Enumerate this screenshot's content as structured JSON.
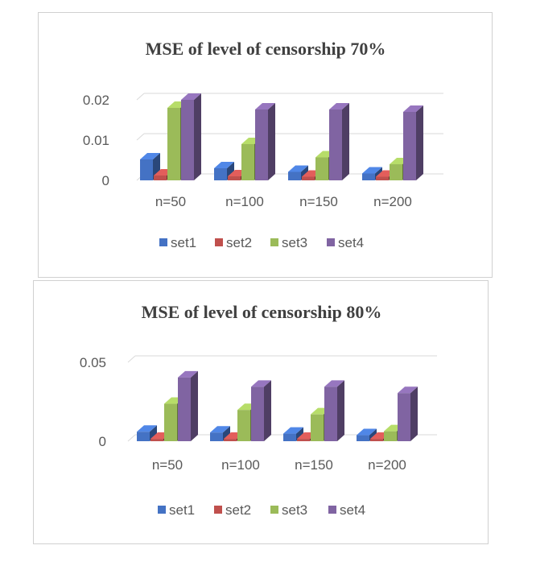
{
  "chart_data": [
    {
      "type": "bar",
      "title": "MSE of level of censorship 70%",
      "categories": [
        "n=50",
        "n=100",
        "n=150",
        "n=200"
      ],
      "series": [
        {
          "name": "set1",
          "values": [
            0.0052,
            0.003,
            0.0021,
            0.0017
          ]
        },
        {
          "name": "set2",
          "values": [
            0.0012,
            0.001,
            0.0009,
            0.0009
          ]
        },
        {
          "name": "set3",
          "values": [
            0.018,
            0.009,
            0.0057,
            0.004
          ]
        },
        {
          "name": "set4",
          "values": [
            0.02,
            0.0176,
            0.0176,
            0.017
          ]
        }
      ],
      "y_ticks": [
        "0",
        "0.01",
        "0.02"
      ],
      "ylim": [
        0,
        0.02
      ],
      "grid": true,
      "legend": "bottom"
    },
    {
      "type": "bar",
      "title": "MSE of level of censorship 80%",
      "categories": [
        "n=50",
        "n=100",
        "n=150",
        "n=200"
      ],
      "series": [
        {
          "name": "set1",
          "values": [
            0.006,
            0.0055,
            0.0048,
            0.0038
          ]
        },
        {
          "name": "set2",
          "values": [
            0.0015,
            0.0015,
            0.0015,
            0.0015
          ]
        },
        {
          "name": "set3",
          "values": [
            0.0237,
            0.0198,
            0.017,
            0.0063
          ]
        },
        {
          "name": "set4",
          "values": [
            0.0404,
            0.0345,
            0.0345,
            0.0305
          ]
        }
      ],
      "y_ticks": [
        "0",
        "0.05"
      ],
      "ylim": [
        0,
        0.05
      ],
      "grid": true,
      "legend": "bottom"
    }
  ],
  "colors": {
    "set1": "#4472c4",
    "set2": "#c0504d",
    "set3": "#9bbb59",
    "set4": "#8064a2"
  }
}
